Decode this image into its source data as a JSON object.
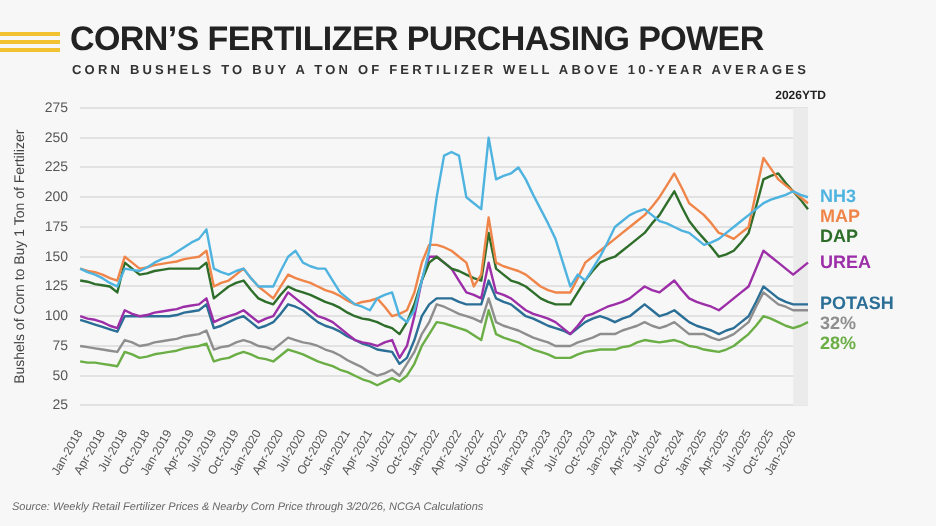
{
  "chart_data": {
    "type": "line",
    "title": "CORN’S FERTILIZER PURCHASING POWER",
    "subtitle": "CORN BUSHELS TO BUY A TON OF FERTILIZER WELL ABOVE 10-YEAR AVERAGES",
    "ylabel": "Bushels of Corn to Buy 1 Ton of Fertilizer",
    "annotations": [
      "Source: Weekly Retail Fertilizer Prices & Nearby Corn Price through 3/20/26, NCGA Calculations",
      "2026YTD"
    ],
    "categories": [
      "Jan-2018",
      null,
      null,
      "Apr-2018",
      null,
      null,
      "Jul-2018",
      null,
      null,
      "Oct-2018",
      null,
      null,
      "Jan-2019",
      null,
      null,
      "Apr-2019",
      null,
      null,
      "Jul-2019",
      null,
      null,
      "Oct-2019",
      null,
      null,
      "Jan-2020",
      null,
      null,
      "Apr-2020",
      null,
      null,
      "Jul-2020",
      null,
      null,
      "Oct-2020",
      null,
      null,
      "Jan-2021",
      null,
      null,
      "Apr-2021",
      null,
      null,
      "Jul-2021",
      null,
      null,
      "Oct-2021",
      null,
      null,
      "Jan-2022",
      null,
      null,
      "Apr-2022",
      null,
      null,
      "Jul-2022",
      null,
      null,
      "Oct-2022",
      null,
      null,
      "Jan-2023",
      null,
      null,
      "Apr-2023",
      null,
      null,
      "Jul-2023",
      null,
      null,
      "Oct-2023",
      null,
      null,
      "Jan-2024",
      null,
      null,
      "Apr-2024",
      null,
      null,
      "Jul-2024",
      null,
      null,
      "Oct-2024",
      null,
      null,
      "Jan-2025",
      null,
      null,
      "Apr-2025",
      null,
      null,
      "Jul-2025",
      null,
      null,
      "Oct-2025",
      null,
      null,
      "Jan-2026",
      null,
      null
    ],
    "series": [
      {
        "name": "NH3",
        "color": "#4fb3e0",
        "values": [
          140,
          137,
          135,
          132,
          128,
          125,
          140,
          139,
          138,
          141,
          145,
          148,
          150,
          154,
          158,
          162,
          165,
          173,
          140,
          137,
          135,
          138,
          140,
          132,
          125,
          125,
          125,
          138,
          150,
          155,
          145,
          142,
          140,
          140,
          130,
          120,
          115,
          110,
          108,
          105,
          115,
          118,
          120,
          100,
          95,
          105,
          130,
          155,
          200,
          235,
          238,
          235,
          200,
          195,
          190,
          250,
          215,
          218,
          220,
          225,
          215,
          202,
          190,
          178,
          165,
          145,
          125,
          135,
          130,
          140,
          150,
          162,
          175,
          180,
          185,
          188,
          190,
          185,
          180,
          178,
          175,
          172,
          170,
          165,
          160,
          162,
          165,
          170,
          175,
          180,
          185,
          190,
          195,
          198,
          200,
          202,
          205,
          202,
          200
        ]
      },
      {
        "name": "MAP",
        "color": "#f0854a",
        "values": [
          140,
          138,
          137,
          135,
          132,
          130,
          150,
          145,
          140,
          141,
          143,
          144,
          145,
          146,
          148,
          149,
          150,
          155,
          125,
          128,
          130,
          135,
          140,
          132,
          125,
          120,
          115,
          125,
          135,
          132,
          130,
          128,
          125,
          122,
          120,
          117,
          113,
          110,
          112,
          113,
          115,
          108,
          100,
          102,
          105,
          120,
          145,
          160,
          160,
          158,
          155,
          150,
          145,
          125,
          135,
          183,
          145,
          142,
          140,
          138,
          135,
          130,
          125,
          122,
          120,
          120,
          120,
          132,
          145,
          150,
          155,
          160,
          165,
          170,
          175,
          180,
          185,
          192,
          200,
          210,
          220,
          208,
          195,
          190,
          185,
          178,
          170,
          168,
          165,
          170,
          175,
          204,
          233,
          224,
          215,
          210,
          205,
          200,
          195
        ]
      },
      {
        "name": "DAP",
        "color": "#2e6e2a",
        "values": [
          130,
          129,
          127,
          126,
          125,
          120,
          145,
          140,
          135,
          136,
          138,
          139,
          140,
          140,
          140,
          140,
          140,
          145,
          115,
          120,
          125,
          128,
          130,
          122,
          115,
          112,
          110,
          118,
          125,
          122,
          120,
          118,
          115,
          112,
          110,
          107,
          103,
          100,
          98,
          97,
          95,
          92,
          90,
          85,
          95,
          110,
          130,
          145,
          150,
          145,
          140,
          138,
          135,
          132,
          130,
          170,
          140,
          135,
          130,
          128,
          125,
          120,
          115,
          112,
          110,
          110,
          110,
          120,
          130,
          138,
          145,
          148,
          150,
          155,
          160,
          165,
          170,
          178,
          185,
          195,
          205,
          192,
          180,
          172,
          165,
          158,
          150,
          152,
          155,
          162,
          170,
          192,
          215,
          218,
          220,
          212,
          205,
          198,
          190
        ]
      },
      {
        "name": "UREA",
        "color": "#9c2fa8",
        "values": [
          100,
          98,
          97,
          95,
          92,
          90,
          105,
          102,
          100,
          101,
          103,
          104,
          105,
          106,
          108,
          109,
          110,
          115,
          95,
          98,
          100,
          102,
          105,
          100,
          95,
          98,
          100,
          110,
          120,
          115,
          110,
          105,
          100,
          98,
          95,
          90,
          85,
          80,
          78,
          77,
          75,
          78,
          80,
          65,
          75,
          100,
          130,
          150,
          150,
          145,
          140,
          130,
          120,
          118,
          115,
          145,
          120,
          118,
          115,
          110,
          105,
          102,
          100,
          98,
          95,
          90,
          85,
          92,
          100,
          102,
          105,
          108,
          110,
          112,
          115,
          120,
          125,
          122,
          120,
          125,
          130,
          122,
          115,
          112,
          110,
          108,
          105,
          110,
          115,
          120,
          125,
          140,
          155,
          150,
          145,
          140,
          135,
          140,
          145
        ]
      },
      {
        "name": "32%",
        "color": "#8e8e8e",
        "values": [
          75,
          74,
          73,
          72,
          71,
          70,
          80,
          78,
          75,
          76,
          78,
          79,
          80,
          81,
          83,
          84,
          85,
          88,
          72,
          74,
          75,
          78,
          80,
          78,
          75,
          74,
          72,
          77,
          82,
          80,
          78,
          77,
          75,
          72,
          70,
          67,
          63,
          60,
          57,
          53,
          50,
          52,
          55,
          50,
          60,
          70,
          85,
          95,
          110,
          108,
          105,
          102,
          100,
          98,
          95,
          115,
          95,
          92,
          90,
          88,
          85,
          82,
          80,
          78,
          75,
          75,
          75,
          78,
          80,
          82,
          85,
          85,
          85,
          88,
          90,
          92,
          95,
          92,
          90,
          92,
          95,
          90,
          85,
          85,
          85,
          82,
          80,
          82,
          85,
          90,
          95,
          108,
          120,
          115,
          110,
          108,
          105,
          105,
          105
        ]
      },
      {
        "name": "POTASH",
        "color": "#2b6f96",
        "values": [
          97,
          95,
          93,
          91,
          89,
          87,
          100,
          100,
          100,
          100,
          100,
          100,
          100,
          101,
          103,
          104,
          105,
          110,
          90,
          92,
          95,
          98,
          100,
          95,
          90,
          92,
          95,
          102,
          110,
          108,
          105,
          100,
          95,
          92,
          90,
          87,
          83,
          80,
          77,
          75,
          72,
          71,
          70,
          60,
          65,
          80,
          100,
          110,
          115,
          115,
          115,
          112,
          110,
          110,
          110,
          130,
          115,
          112,
          110,
          105,
          100,
          98,
          95,
          92,
          90,
          88,
          85,
          90,
          95,
          98,
          100,
          98,
          95,
          98,
          100,
          105,
          110,
          105,
          100,
          102,
          105,
          100,
          95,
          92,
          90,
          88,
          85,
          88,
          90,
          95,
          100,
          112,
          125,
          120,
          115,
          112,
          110,
          110,
          110
        ]
      },
      {
        "name": "28%",
        "color": "#6aae45",
        "values": [
          62,
          61,
          61,
          60,
          59,
          58,
          70,
          68,
          65,
          66,
          68,
          69,
          70,
          71,
          73,
          74,
          75,
          77,
          62,
          64,
          65,
          68,
          70,
          68,
          65,
          64,
          62,
          67,
          72,
          70,
          68,
          65,
          62,
          60,
          58,
          55,
          53,
          50,
          47,
          45,
          42,
          45,
          48,
          45,
          50,
          60,
          75,
          85,
          95,
          94,
          92,
          90,
          88,
          84,
          80,
          105,
          85,
          82,
          80,
          78,
          75,
          72,
          70,
          68,
          65,
          65,
          65,
          68,
          70,
          71,
          72,
          72,
          72,
          74,
          75,
          78,
          80,
          79,
          78,
          79,
          80,
          78,
          75,
          74,
          72,
          71,
          70,
          72,
          75,
          80,
          85,
          92,
          100,
          98,
          95,
          92,
          90,
          92,
          95
        ]
      }
    ],
    "ylim": [
      25,
      275
    ],
    "yticks": [
      25,
      50,
      75,
      100,
      125,
      150,
      175,
      200,
      225,
      250,
      275
    ],
    "grid": "y",
    "marker": "none"
  }
}
